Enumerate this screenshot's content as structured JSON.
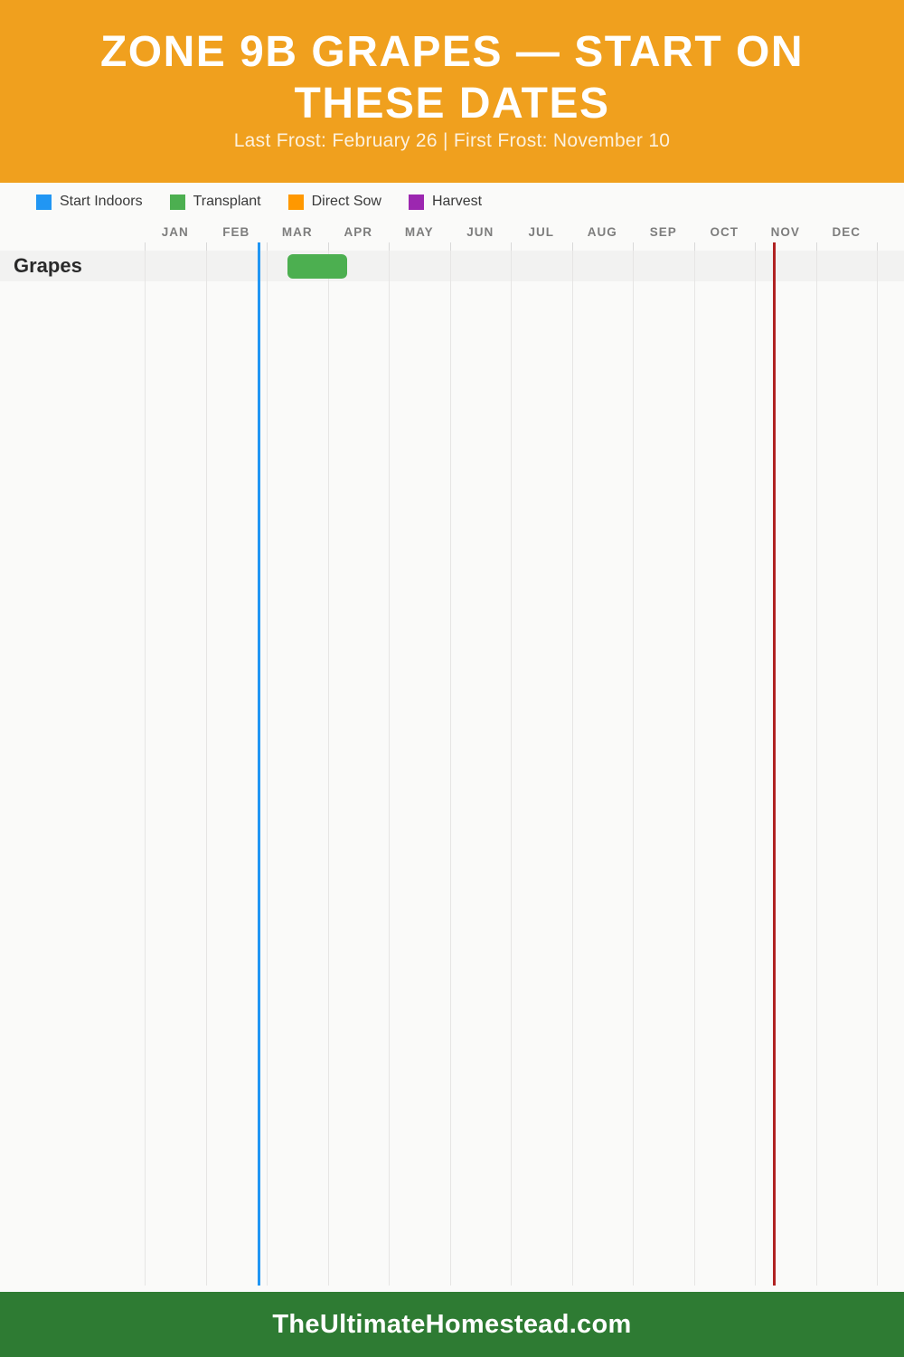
{
  "header": {
    "title": "ZONE 9B GRAPES — START ON THESE DATES",
    "subtitle": "Last Frost: February 26 | First Frost: November 10"
  },
  "legend": {
    "items": [
      {
        "label": "Start Indoors",
        "color": "#2196f3"
      },
      {
        "label": "Transplant",
        "color": "#4caf50"
      },
      {
        "label": "Direct Sow",
        "color": "#ff9800"
      },
      {
        "label": "Harvest",
        "color": "#9c27b0"
      }
    ]
  },
  "chart_data": {
    "type": "bar",
    "subtype": "gantt-planting-calendar",
    "title": "Zone 9b Grapes — Start On These Dates",
    "months": [
      "JAN",
      "FEB",
      "MAR",
      "APR",
      "MAY",
      "JUN",
      "JUL",
      "AUG",
      "SEP",
      "OCT",
      "NOV",
      "DEC"
    ],
    "x_range_days": [
      0,
      365
    ],
    "grid": true,
    "legend_position": "top-left",
    "rows": [
      {
        "label": "Grapes",
        "bars": [
          {
            "task": "Transplant",
            "color": "#4caf50",
            "start_day_of_year": 71,
            "end_day_of_year": 101,
            "approx_dates": "Mar 12 – Apr 11"
          }
        ]
      }
    ],
    "frost_lines": [
      {
        "name": "Last Frost",
        "date": "February 26",
        "day_of_year": 57,
        "color": "#2196f3"
      },
      {
        "name": "First Frost",
        "date": "November 10",
        "day_of_year": 314,
        "color": "#b02222"
      }
    ]
  },
  "footer": {
    "site": "TheUltimateHomestead.com"
  },
  "colors": {
    "header_bg": "#f0a01e",
    "footer_bg": "#2e7b33",
    "page_bg": "#fafaf9",
    "row_band": "#f2f2f1",
    "gridline": "#e6e5e4",
    "month_label": "#7d7d7d",
    "row_label": "#2a2a2a"
  }
}
